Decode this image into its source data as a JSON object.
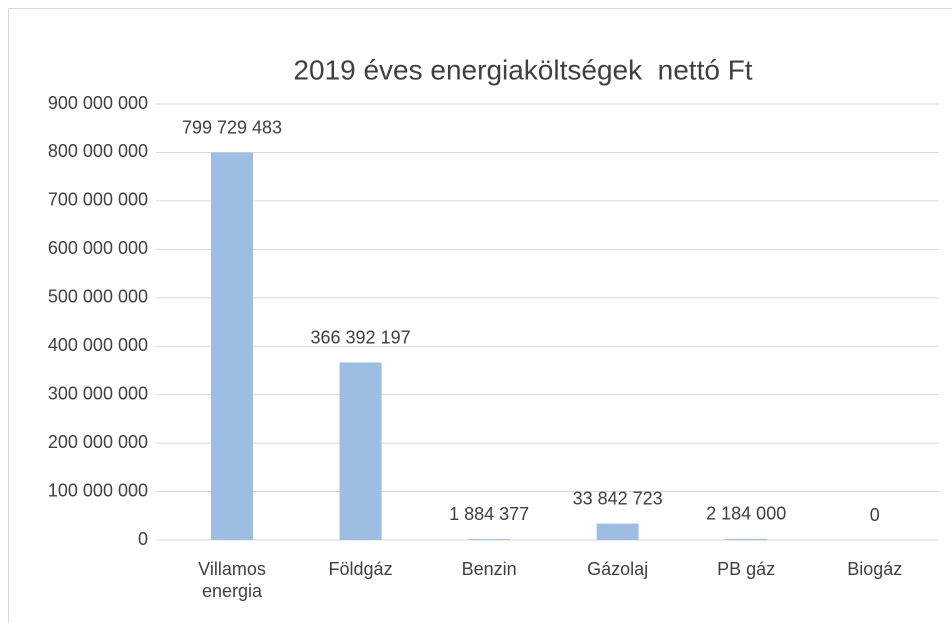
{
  "chart_data": {
    "type": "bar",
    "title": "2019 éves energiaköltségek  nettó Ft",
    "categories": [
      "Villamos energia",
      "Földgáz",
      "Benzin",
      "Gázolaj",
      "PB gáz",
      "Biogáz"
    ],
    "values": [
      799729483,
      366392197,
      1884377,
      33842723,
      2184000,
      0
    ],
    "value_labels": [
      "799 729 483",
      "366 392 197",
      "1 884 377",
      "33 842 723",
      "2 184 000",
      "0"
    ],
    "color": "#9dbde3",
    "ylim": [
      0,
      900000000
    ],
    "yticks": [
      0,
      {
        "value": 100000000,
        "label": "100 000 000"
      },
      {
        "value": 200000000,
        "label": "200 000 000"
      },
      {
        "value": 300000000,
        "label": "300 000 000"
      },
      {
        "value": 400000000,
        "label": "400 000 000"
      },
      {
        "value": 500000000,
        "label": "500 000 000"
      },
      {
        "value": 600000000,
        "label": "600 000 000"
      },
      {
        "value": 700000000,
        "label": "700 000 000"
      },
      {
        "value": 800000000,
        "label": "800 000 000"
      },
      {
        "value": 900000000,
        "label": "900 000 000"
      }
    ],
    "grid": true
  }
}
